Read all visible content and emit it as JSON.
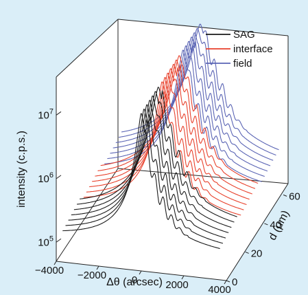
{
  "chart_data": {
    "type": "line",
    "subtype": "3d-waterfall",
    "title": "",
    "xlabel": "Δθ (arcsec)",
    "ylabel": "intensity (c.p.s.)",
    "zlabel": "d (μm)",
    "x_ticks": [
      "−4000",
      "−2000",
      "0",
      "2000",
      "4000"
    ],
    "z_ticks": [
      "0",
      "20",
      "40",
      "60"
    ],
    "y_ticks": [
      {
        "base": "10",
        "exp": "5"
      },
      {
        "base": "10",
        "exp": "6"
      },
      {
        "base": "10",
        "exp": "7"
      }
    ],
    "xlim": [
      -4000,
      4000
    ],
    "zlim": [
      0,
      65
    ],
    "ylim_log10": [
      4.7,
      7.6
    ],
    "y_scale": "log",
    "legend_position": "top-right",
    "peak_x": 0,
    "series": [
      {
        "name": "SAG",
        "color": "#1a1a1a",
        "depths": [
          0,
          3,
          6,
          9,
          12,
          15,
          18
        ]
      },
      {
        "name": "interface",
        "color": "#e8412c",
        "depths": [
          22,
          25,
          28,
          31,
          34,
          37,
          40
        ]
      },
      {
        "name": "field",
        "color": "#5a64b4",
        "depths": [
          44,
          47,
          50,
          53,
          56,
          59,
          62
        ]
      }
    ]
  }
}
